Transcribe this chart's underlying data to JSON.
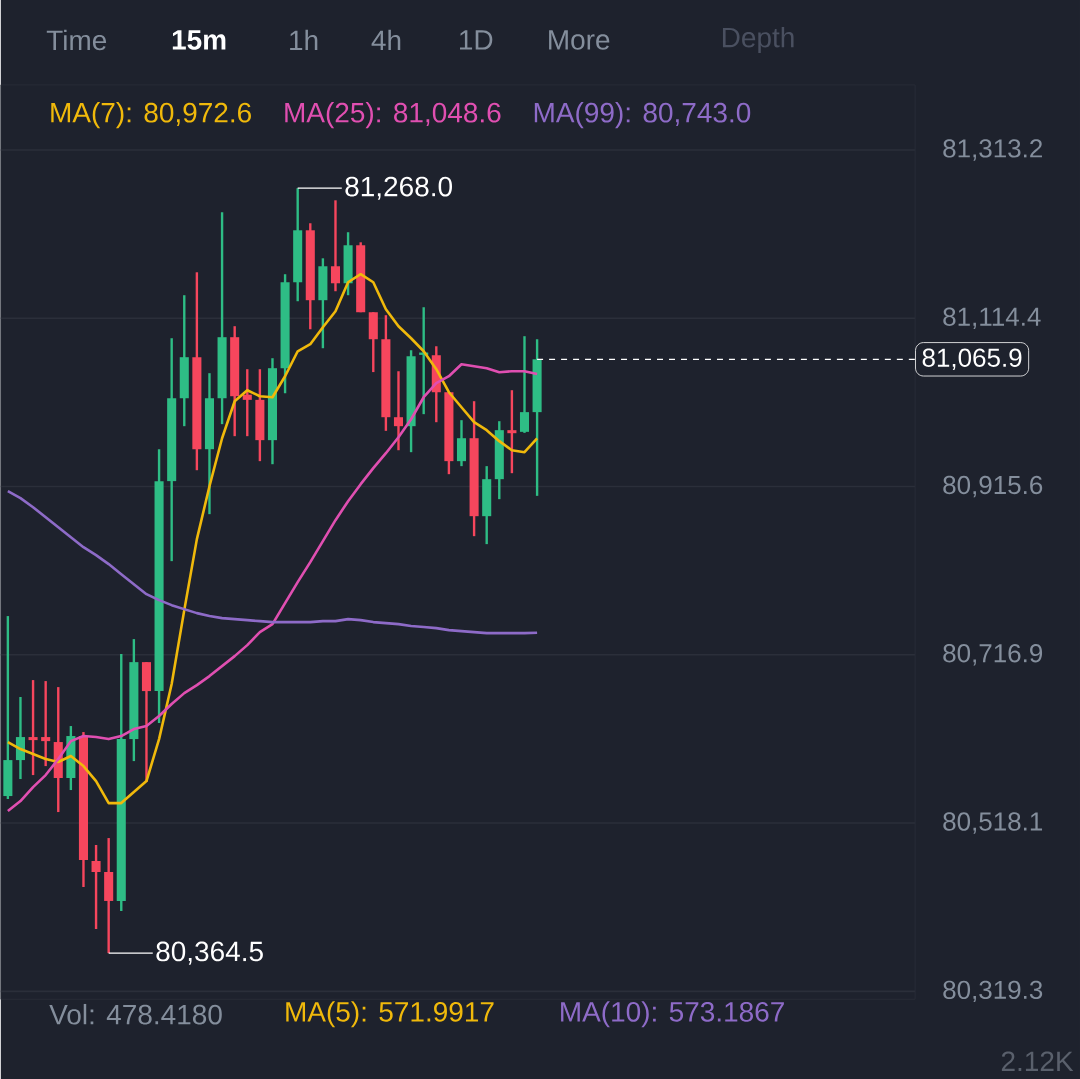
{
  "chart_data": {
    "type": "candlestick",
    "categories": [
      null,
      null,
      null,
      null,
      null,
      null,
      null,
      null,
      null,
      null,
      null,
      null,
      null,
      null,
      null,
      null,
      null,
      null,
      null,
      null,
      null,
      null,
      null,
      null,
      null,
      null,
      null,
      null,
      null,
      null,
      null,
      null,
      null,
      null,
      null,
      null,
      null,
      null,
      null,
      null,
      null,
      null,
      null
    ],
    "ohlc": [
      [
        80550.0,
        80762.6,
        80546.5,
        80592.5
      ],
      [
        80592.5,
        80667.0,
        80570.1,
        80619.7
      ],
      [
        80619.7,
        80687.0,
        80574.8,
        80616.1
      ],
      [
        80619.7,
        80685.8,
        80585.4,
        80614.9
      ],
      [
        80613.8,
        80678.7,
        80531.1,
        80571.3
      ],
      [
        80571.3,
        80632.7,
        80557.1,
        80620.9
      ],
      [
        80620.9,
        80625.6,
        80442.6,
        80474.5
      ],
      [
        80473.3,
        80492.2,
        80393.0,
        80460.3
      ],
      [
        80460.3,
        80500.4,
        80364.5,
        80426.1
      ],
      [
        80426.1,
        80717.7,
        80414.2,
        80617.3
      ],
      [
        80617.3,
        80735.4,
        80591.3,
        80708.2
      ],
      [
        80708.2,
        80708.2,
        80566.6,
        80674.0
      ],
      [
        80674.0,
        80959.7,
        80636.2,
        80922.0
      ],
      [
        80922.0,
        81090.8,
        80827.5,
        81019.9
      ],
      [
        81019.9,
        81141.6,
        80986.9,
        81068.4
      ],
      [
        81068.4,
        81168.7,
        80934.9,
        80959.7
      ],
      [
        80959.7,
        81049.5,
        80883.0,
        81019.9
      ],
      [
        81019.9,
        81239.6,
        80989.3,
        81092.0
      ],
      [
        81092.0,
        81105.0,
        80975.1,
        81022.3
      ],
      [
        81024.1,
        81054.2,
        80975.1,
        81018.0
      ],
      [
        81018.0,
        81054.2,
        80945.6,
        80970.4
      ],
      [
        80970.4,
        81067.2,
        80942.0,
        81055.4
      ],
      [
        81055.4,
        81166.4,
        81025.8,
        81156.9
      ],
      [
        81156.9,
        81268.0,
        81134.5,
        81218.3
      ],
      [
        81218.3,
        81226.6,
        81101.4,
        81135.7
      ],
      [
        81135.7,
        81185.2,
        81079.0,
        81175.8
      ],
      [
        81175.8,
        81253.7,
        81146.3,
        81155.7
      ],
      [
        81155.7,
        81216.0,
        81141.6,
        81200.6
      ],
      [
        81200.6,
        81204.1,
        81121.5,
        81121.5
      ],
      [
        81121.5,
        81121.5,
        81050.8,
        81089.6
      ],
      [
        81089.6,
        81118.0,
        80981.4,
        80997.5
      ],
      [
        80997.5,
        81051.8,
        80958.5,
        80986.9
      ],
      [
        80986.9,
        81076.6,
        80956.2,
        81069.5
      ],
      [
        81071.1,
        81127.4,
        81001.1,
        81073.9
      ],
      [
        81070.7,
        81081.3,
        80991.6,
        81027.0
      ],
      [
        81027.0,
        81027.0,
        80930.2,
        80945.6
      ],
      [
        80945.6,
        80994.0,
        80939.7,
        80972.7
      ],
      [
        80972.7,
        81016.4,
        80857.0,
        80880.6
      ],
      [
        80880.6,
        80939.7,
        80847.6,
        80924.3
      ],
      [
        80924.3,
        80992.8,
        80900.7,
        80982.2
      ],
      [
        80982.2,
        81029.4,
        80931.4,
        80978.6
      ],
      [
        80980.2,
        81093.2,
        80979.0,
        81003.5
      ],
      [
        81003.5,
        81089.6,
        80904.6,
        81065.9
      ]
    ],
    "colors": [
      "#2ebd85",
      "#2ebd85",
      "#f6465d",
      "#f6465d",
      "#f6465d",
      "#2ebd85",
      "#f6465d",
      "#f6465d",
      "#f6465d",
      "#2ebd85",
      "#2ebd85",
      "#f6465d",
      "#2ebd85",
      "#2ebd85",
      "#2ebd85",
      "#f6465d",
      "#2ebd85",
      "#2ebd85",
      "#f6465d",
      "#f6465d",
      "#f6465d",
      "#2ebd85",
      "#2ebd85",
      "#2ebd85",
      "#f6465d",
      "#2ebd85",
      "#f6465d",
      "#2ebd85",
      "#f6465d",
      "#f6465d",
      "#f6465d",
      "#f6465d",
      "#2ebd85",
      "#2ebd85",
      "#f6465d",
      "#f6465d",
      "#2ebd85",
      "#f6465d",
      "#2ebd85",
      "#2ebd85",
      "#f6465d",
      "#2ebd85",
      "#2ebd85"
    ],
    "series": [
      {
        "type": "line",
        "name": "MA(7): 80,972.6",
        "color": "#f0b90b",
        "values": [
          80613.8,
          80605.5,
          80599.6,
          80593.7,
          80590.2,
          80597.3,
          80585.4,
          80567.7,
          80541.7,
          80541.7,
          80554.8,
          80567.7,
          80617.3,
          80682.3,
          80769.6,
          80853.5,
          80916.0,
          80972.7,
          81016.4,
          81029.4,
          81022.3,
          81021.1,
          81045.9,
          81075.4,
          81083.7,
          81103.8,
          81122.7,
          81156.9,
          81166.4,
          81156.9,
          81125.0,
          81104.9,
          81090.8,
          81075.4,
          81054.2,
          81027.0,
          81009.3,
          80991.6,
          80982.2,
          80969.2,
          80958.5,
          80956.2,
          80972.6
        ]
      },
      {
        "type": "line",
        "name": "MA(25): 81,048.6",
        "color": "#e04fb1",
        "values": [
          80532.3,
          80544.1,
          80560.6,
          80574.8,
          80593.7,
          80614.9,
          80620.9,
          80619.7,
          80617.3,
          80620.9,
          80629.1,
          80632.7,
          80644.5,
          80658.7,
          80671.6,
          80681.1,
          80691.7,
          80703.5,
          80715.3,
          80728.3,
          80743.7,
          80753.1,
          80777.9,
          80802.7,
          80826.3,
          80851.1,
          80875.9,
          80898.3,
          80918.4,
          80937.3,
          80955.0,
          80973.9,
          80995.1,
          81021.1,
          81037.7,
          81045.9,
          81060.1,
          81057.7,
          81055.4,
          81050.6,
          81051.8,
          81051.8,
          81048.6
        ]
      },
      {
        "type": "line",
        "name": "MA(99): 80,743.0",
        "color": "#8e6bc8",
        "values": [
          80910.1,
          80901.9,
          80891.2,
          80879.4,
          80867.6,
          80855.8,
          80844.0,
          80834.6,
          80824.0,
          80812.1,
          80800.3,
          80788.5,
          80781.4,
          80775.5,
          80770.8,
          80766.1,
          80762.6,
          80760.2,
          80759.0,
          80757.8,
          80756.6,
          80755.5,
          80755.5,
          80755.5,
          80755.5,
          80756.6,
          80756.6,
          80759.0,
          80757.8,
          80755.5,
          80754.3,
          80753.1,
          80750.8,
          80749.6,
          80748.4,
          80746.0,
          80744.8,
          80743.6,
          80742.5,
          80742.5,
          80742.5,
          80742.5,
          80743.0
        ]
      }
    ],
    "ylim": [
      80310,
      81390
    ],
    "yticks": [
      {
        "value": 80319.3,
        "label": "80,319.3"
      },
      {
        "value": 80518.1,
        "label": "80,518.1"
      },
      {
        "value": 80716.9,
        "label": "80,716.9"
      },
      {
        "value": 80915.6,
        "label": "80,915.6"
      },
      {
        "value": 81114.4,
        "label": "81,114.4"
      },
      {
        "value": 81313.2,
        "label": "81,313.2"
      }
    ],
    "tick_labels": "y",
    "grid": "y",
    "legend": "top",
    "ref_lines": [
      {
        "axis": "y",
        "value": 81065.9,
        "label": "81,065.9",
        "line_style": "dashed",
        "color": "#ffffff"
      }
    ],
    "annotations": [
      "Time",
      "15m",
      "1h",
      "4h",
      "1D",
      "More",
      "Depth",
      "Vol: 478.4180",
      "MA(5): 571.9917",
      "MA(10): 573.1867",
      "2.12K",
      "81,268.0",
      "80,364.5"
    ]
  }
}
